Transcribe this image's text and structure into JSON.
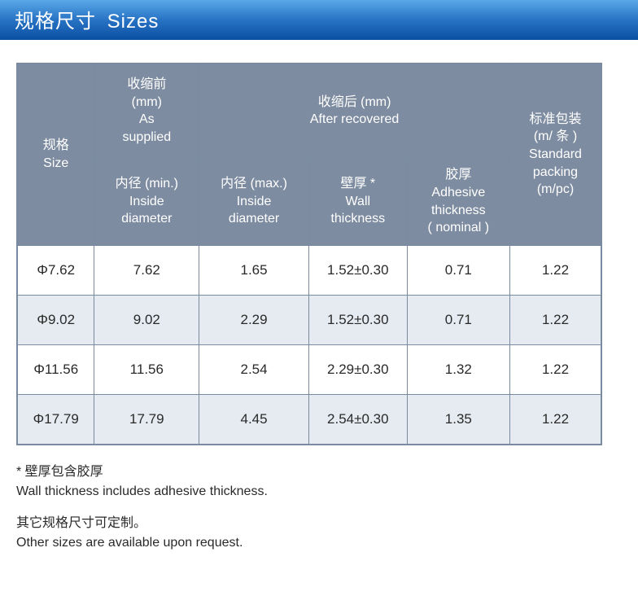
{
  "title": {
    "zh": "规格尺寸",
    "en": "Sizes"
  },
  "headers": {
    "size": "规格\nSize",
    "as_supplied": "收缩前\n(mm)\nAs\nsupplied",
    "after_recovered": "收缩后 (mm)\nAfter recovered",
    "packing": "标准包装\n(m/ 条 )\nStandard\npacking\n(m/pc)",
    "id_min": "内径 (min.)\nInside\ndiameter",
    "id_max": "内径 (max.)\nInside\ndiameter",
    "wall": "壁厚 *\nWall\nthickness",
    "adhesive": "胶厚\nAdhesive\nthickness\n( nominal )"
  },
  "rows": [
    {
      "size": "Φ7.62",
      "id_min": "7.62",
      "id_max": "1.65",
      "wall": "1.52±0.30",
      "adhesive": "0.71",
      "packing": "1.22",
      "alt": false
    },
    {
      "size": "Φ9.02",
      "id_min": "9.02",
      "id_max": "2.29",
      "wall": "1.52±0.30",
      "adhesive": "0.71",
      "packing": "1.22",
      "alt": true
    },
    {
      "size": "Φ11.56",
      "id_min": "11.56",
      "id_max": "2.54",
      "wall": "2.29±0.30",
      "adhesive": "1.32",
      "packing": "1.22",
      "alt": false
    },
    {
      "size": "Φ17.79",
      "id_min": "17.79",
      "id_max": "4.45",
      "wall": "2.54±0.30",
      "adhesive": "1.35",
      "packing": "1.22",
      "alt": true
    }
  ],
  "notes": {
    "n1_zh": "* 壁厚包含胶厚",
    "n1_en": "Wall thickness includes adhesive thickness.",
    "n2_zh": "其它规格尺寸可定制。",
    "n2_en": "Other sizes are available upon request."
  },
  "colors": {
    "header_bg": "#7e8ca1",
    "border": "#7a8aa0",
    "alt_row": "#e6ebf1",
    "title_grad_top": "#5aa8e8",
    "title_grad_bot": "#0a4fa3"
  }
}
